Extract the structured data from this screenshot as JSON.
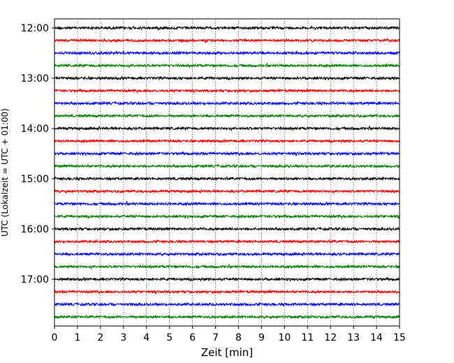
{
  "chart_data": {
    "type": "line",
    "title": "",
    "xlabel": "Zeit  [min]",
    "ylabel": "UTC (Lokalzeit = UTC + 01:00)",
    "xlim": [
      0,
      15
    ],
    "x_ticks": [
      0,
      1,
      2,
      3,
      4,
      5,
      6,
      7,
      8,
      9,
      10,
      11,
      12,
      13,
      14,
      15
    ],
    "x_tick_labels": [
      "0",
      "1",
      "2",
      "3",
      "4",
      "5",
      "6",
      "7",
      "8",
      "9",
      "10",
      "11",
      "12",
      "13",
      "14",
      "15"
    ],
    "y_tick_labels": [
      {
        "label": "12:00",
        "trace_index": 0
      },
      {
        "label": "13:00",
        "trace_index": 4
      },
      {
        "label": "14:00",
        "trace_index": 8
      },
      {
        "label": "15:00",
        "trace_index": 12
      },
      {
        "label": "16:00",
        "trace_index": 16
      },
      {
        "label": "17:00",
        "trace_index": 20
      }
    ],
    "grid": "vertical dotted",
    "trace_minutes": 15,
    "trace_colors": [
      "#000000",
      "#ff0000",
      "#0000ff",
      "#008000"
    ],
    "series": [
      {
        "start": "12:00",
        "color": "#000000"
      },
      {
        "start": "12:15",
        "color": "#ff0000"
      },
      {
        "start": "12:30",
        "color": "#0000ff"
      },
      {
        "start": "12:45",
        "color": "#008000"
      },
      {
        "start": "13:00",
        "color": "#000000"
      },
      {
        "start": "13:15",
        "color": "#ff0000"
      },
      {
        "start": "13:30",
        "color": "#0000ff"
      },
      {
        "start": "13:45",
        "color": "#008000"
      },
      {
        "start": "14:00",
        "color": "#000000"
      },
      {
        "start": "14:15",
        "color": "#ff0000"
      },
      {
        "start": "14:30",
        "color": "#0000ff"
      },
      {
        "start": "14:45",
        "color": "#008000"
      },
      {
        "start": "15:00",
        "color": "#000000"
      },
      {
        "start": "15:15",
        "color": "#ff0000"
      },
      {
        "start": "15:30",
        "color": "#0000ff"
      },
      {
        "start": "15:45",
        "color": "#008000"
      },
      {
        "start": "16:00",
        "color": "#000000"
      },
      {
        "start": "16:15",
        "color": "#ff0000"
      },
      {
        "start": "16:30",
        "color": "#0000ff"
      },
      {
        "start": "16:45",
        "color": "#008000"
      },
      {
        "start": "17:00",
        "color": "#000000"
      },
      {
        "start": "17:15",
        "color": "#ff0000"
      },
      {
        "start": "17:30",
        "color": "#0000ff"
      },
      {
        "start": "17:45",
        "color": "#008000"
      }
    ]
  }
}
